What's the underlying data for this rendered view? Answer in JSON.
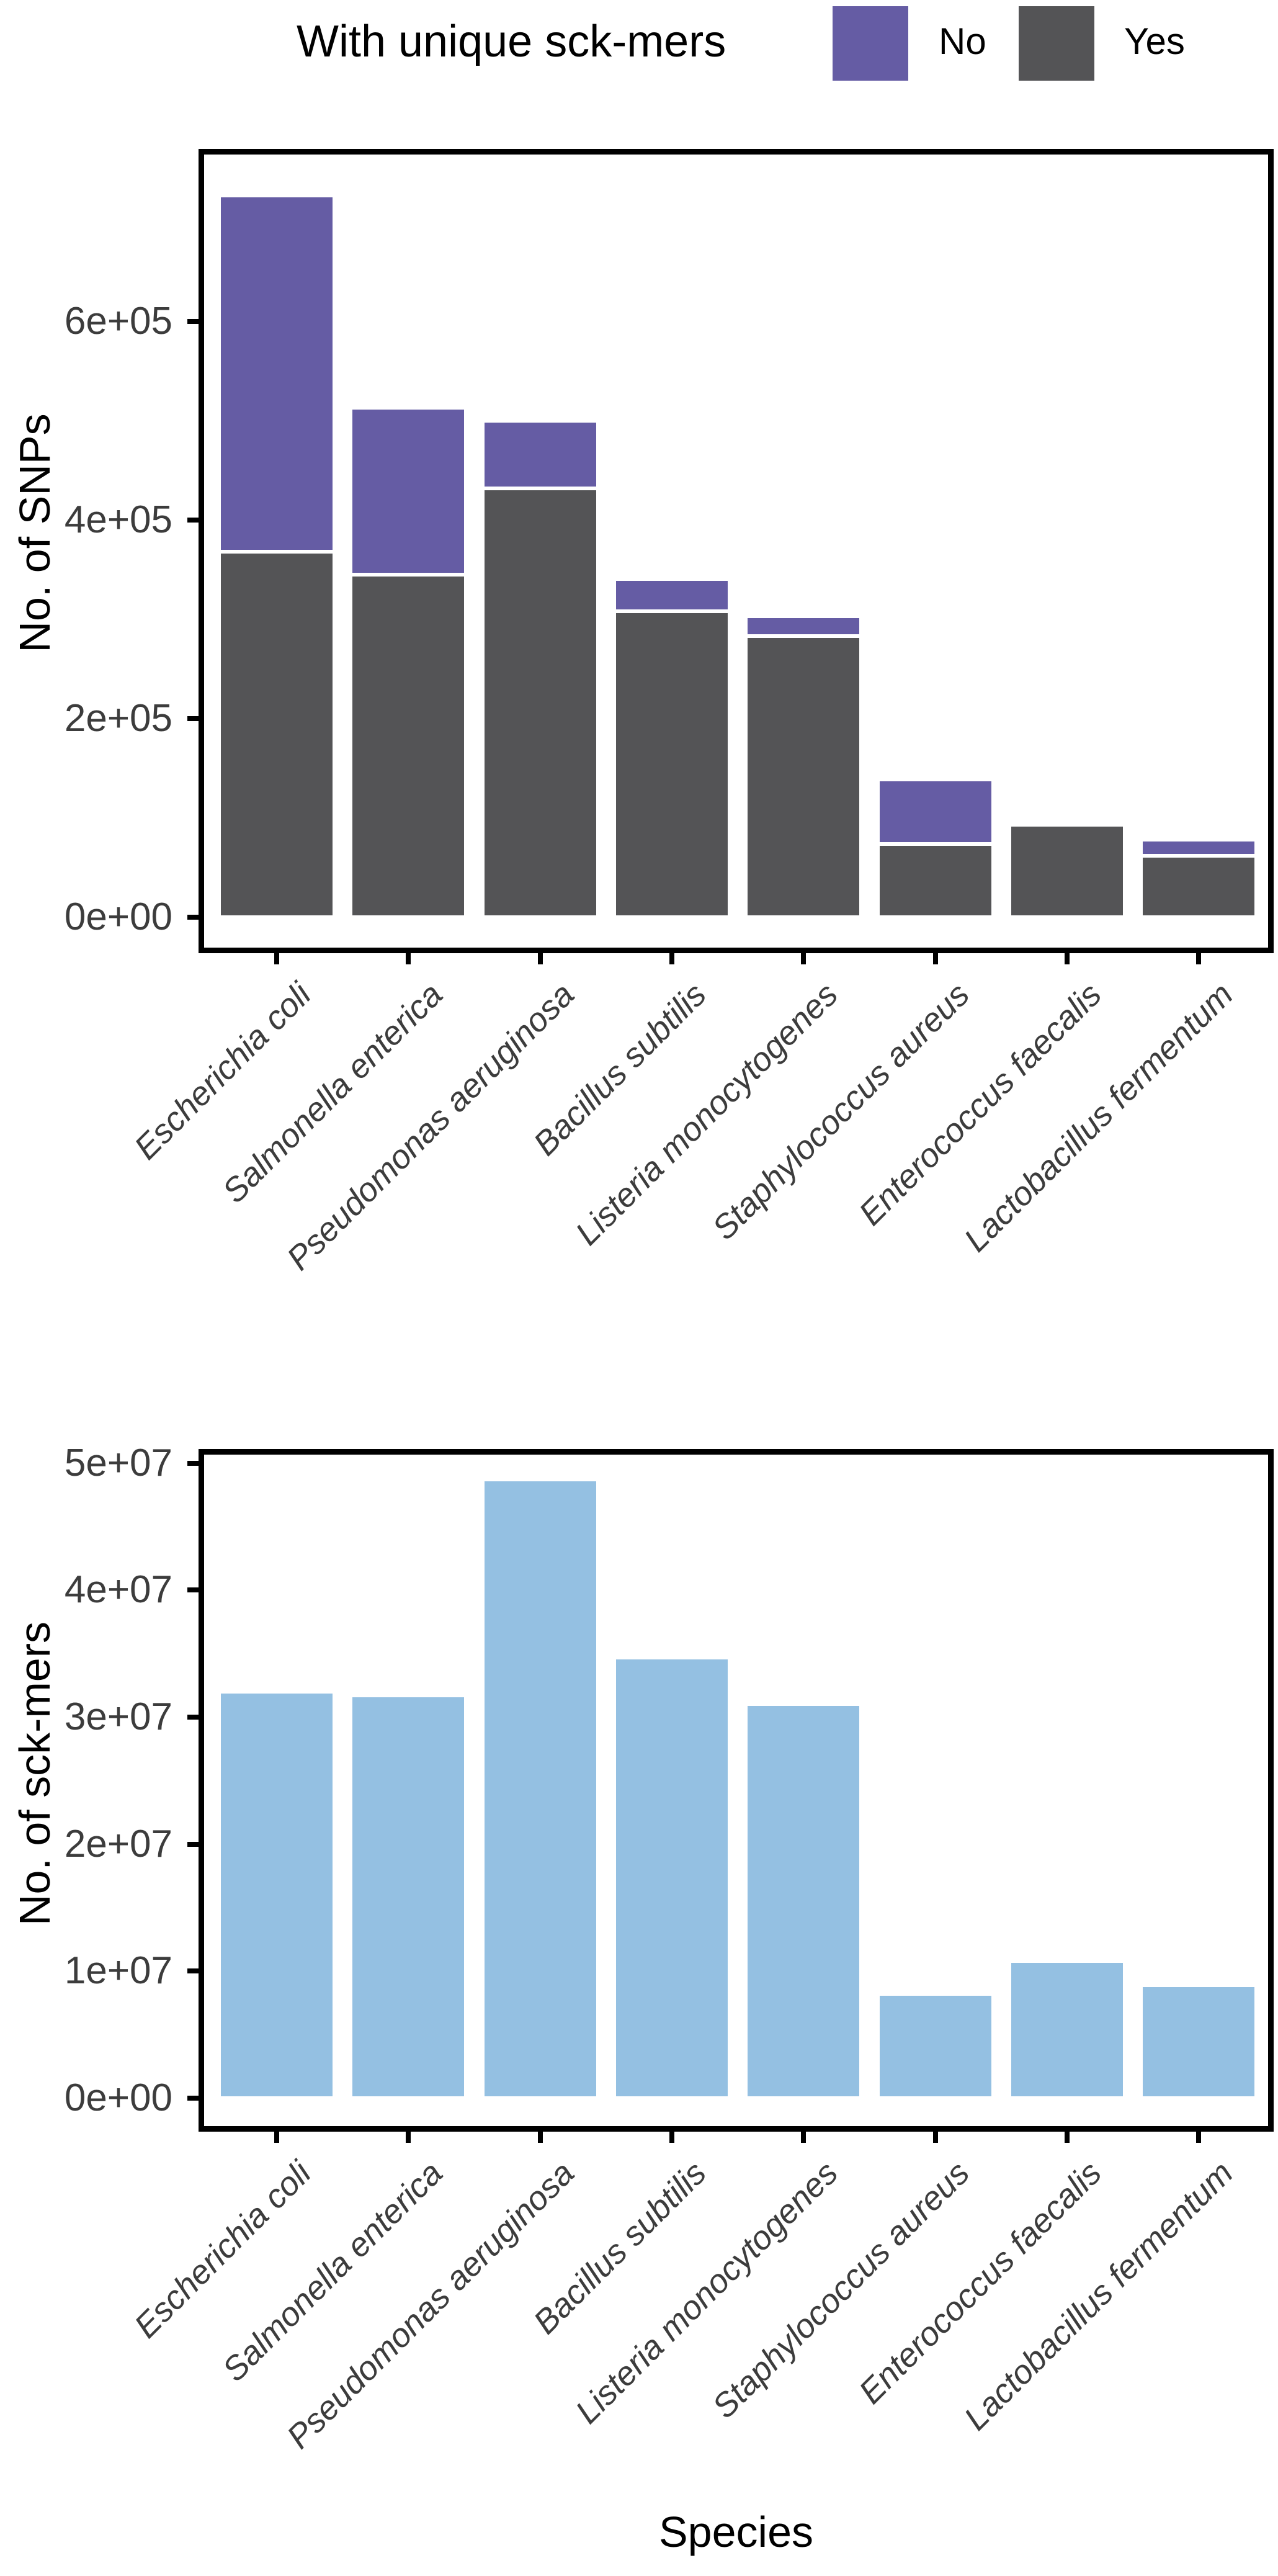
{
  "legend": {
    "title": "With unique sck-mers",
    "items": [
      {
        "label": "No",
        "color": "#655CA4"
      },
      {
        "label": "Yes",
        "color": "#545456"
      }
    ]
  },
  "chart_data": [
    {
      "type": "bar",
      "stacked": true,
      "title": "",
      "legend_title": "With unique sck-mers",
      "legend_position": "top",
      "grid": false,
      "ylabel": "No. of SNPs",
      "xlabel": "",
      "categories": [
        "Escherichia coli",
        "Salmonella enterica",
        "Pseudomonas aeruginosa",
        "Bacillus subtilis",
        "Listeria monocytogenes",
        "Staphylococcus aureus",
        "Enterococcus faecalis",
        "Lactobacillus fermentum"
      ],
      "series": [
        {
          "name": "Yes",
          "color": "#545456",
          "values": [
            368000,
            345000,
            432000,
            308000,
            283000,
            74000,
            93000,
            62000
          ]
        },
        {
          "name": "No",
          "color": "#655CA4",
          "values": [
            359000,
            168000,
            68000,
            33000,
            20000,
            65000,
            0,
            16000
          ]
        }
      ],
      "ytick_values": [
        0,
        200000,
        400000,
        600000
      ],
      "ytick_labels": [
        "0e+00",
        "2e+05",
        "4e+05",
        "6e+05"
      ],
      "ylim": [
        0,
        774000
      ]
    },
    {
      "type": "bar",
      "stacked": false,
      "title": "",
      "grid": false,
      "ylabel": "No. of sck-mers",
      "xlabel": "Species",
      "categories": [
        "Escherichia coli",
        "Salmonella enterica",
        "Pseudomonas aeruginosa",
        "Bacillus subtilis",
        "Listeria monocytogenes",
        "Staphylococcus aureus",
        "Enterococcus faecalis",
        "Lactobacillus fermentum"
      ],
      "series": [
        {
          "name": "No. of sck-mers",
          "color": "#94C0E2",
          "values": [
            32000000,
            31700000,
            48700000,
            34700000,
            31000000,
            8200000,
            10800000,
            8900000
          ]
        }
      ],
      "ytick_values": [
        0,
        10000000,
        20000000,
        30000000,
        40000000,
        50000000
      ],
      "ytick_labels": [
        "0e+00",
        "1e+07",
        "2e+07",
        "3e+07",
        "4e+07",
        "5e+07"
      ],
      "ylim": [
        0,
        51100000
      ]
    }
  ]
}
